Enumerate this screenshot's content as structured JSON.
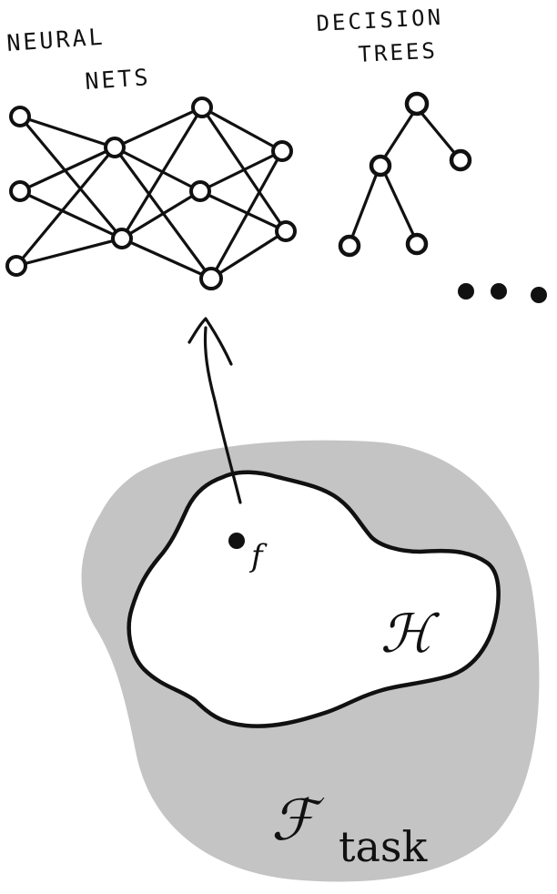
{
  "labels": {
    "neural_nets_line1": "NEURAL",
    "neural_nets_line2": "NETS",
    "decision_trees_line1": "DECISION",
    "decision_trees_line2": "TREES",
    "ellipsis": "..."
  },
  "math": {
    "function_symbol": "f",
    "hypothesis_symbol": "ℋ",
    "task_space_symbol": "ℱ",
    "task_subscript": "task"
  },
  "colors": {
    "ink": "#111111",
    "task_region_fill": "#c4c4c4",
    "hypothesis_fill": "#ffffff"
  }
}
